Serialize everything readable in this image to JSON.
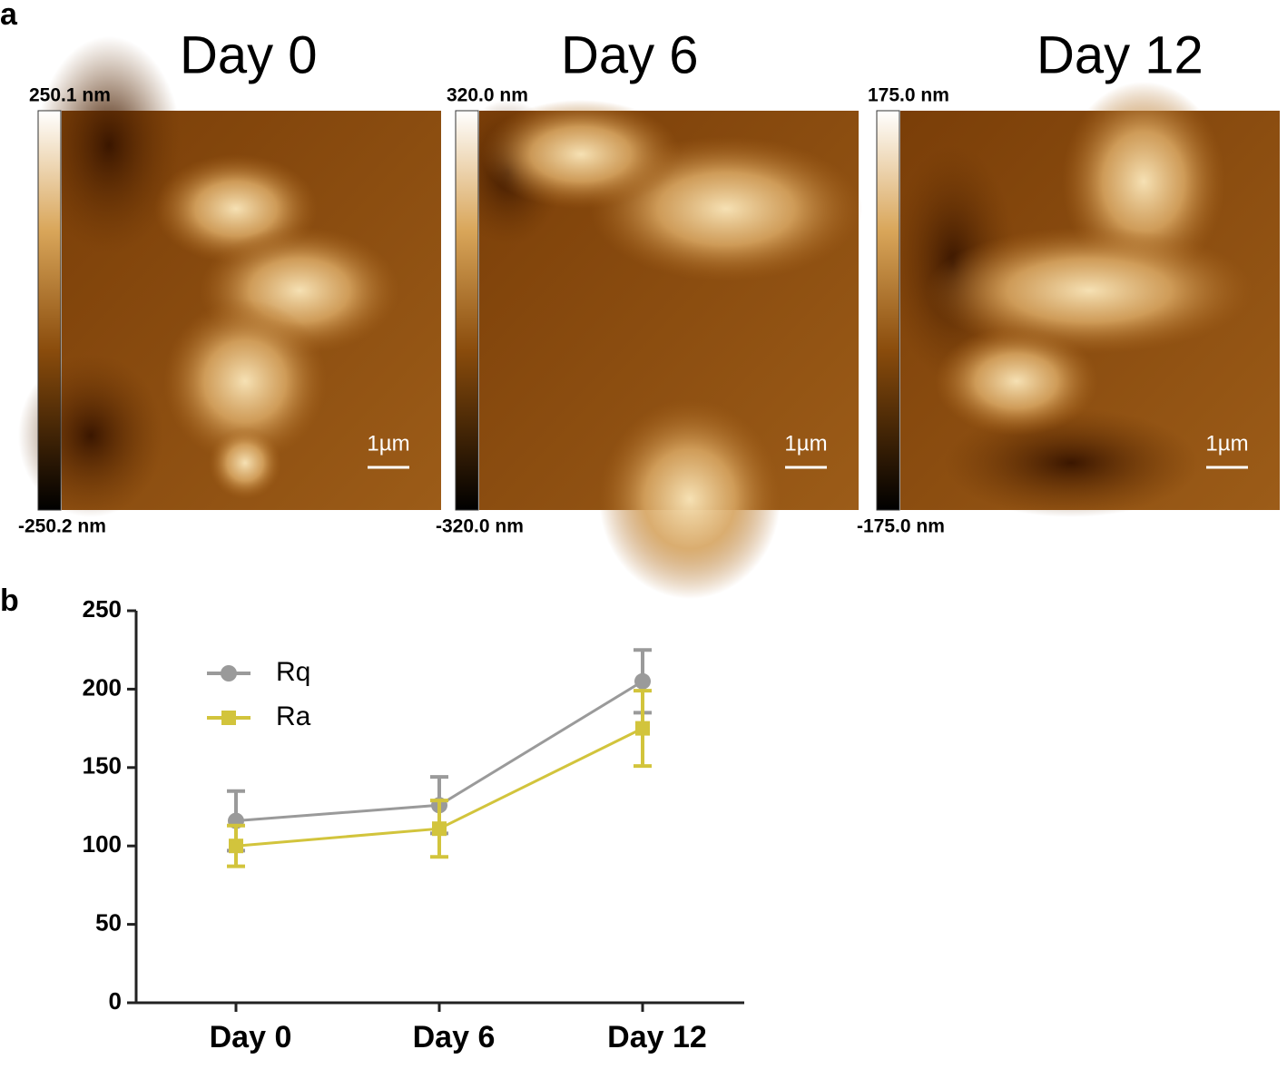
{
  "panel_a": {
    "label": "a",
    "images": [
      {
        "title": "Day 0",
        "max": "250.1 nm",
        "min": "-250.2 nm",
        "scale": "1µm"
      },
      {
        "title": "Day 6",
        "max": "320.0 nm",
        "min": "-320.0 nm",
        "scale": "1µm"
      },
      {
        "title": "Day 12",
        "max": "175.0 nm",
        "min": "-175.0 nm",
        "scale": "1µm"
      }
    ]
  },
  "panel_b": {
    "label": "b"
  },
  "chart_data": {
    "type": "line",
    "categories": [
      "Day 0",
      "Day 6",
      "Day 12"
    ],
    "series": [
      {
        "name": "Rq",
        "color": "#9a9a9a",
        "marker": "circle",
        "values": [
          116,
          126,
          205
        ],
        "errors": [
          19,
          18,
          20
        ]
      },
      {
        "name": "Ra",
        "color": "#d2c43c",
        "marker": "square",
        "values": [
          100,
          111,
          175
        ],
        "errors": [
          13,
          18,
          24
        ]
      }
    ],
    "ylim": [
      0,
      250
    ],
    "yticks": [
      0,
      50,
      100,
      150,
      200,
      250
    ],
    "grid": false
  }
}
